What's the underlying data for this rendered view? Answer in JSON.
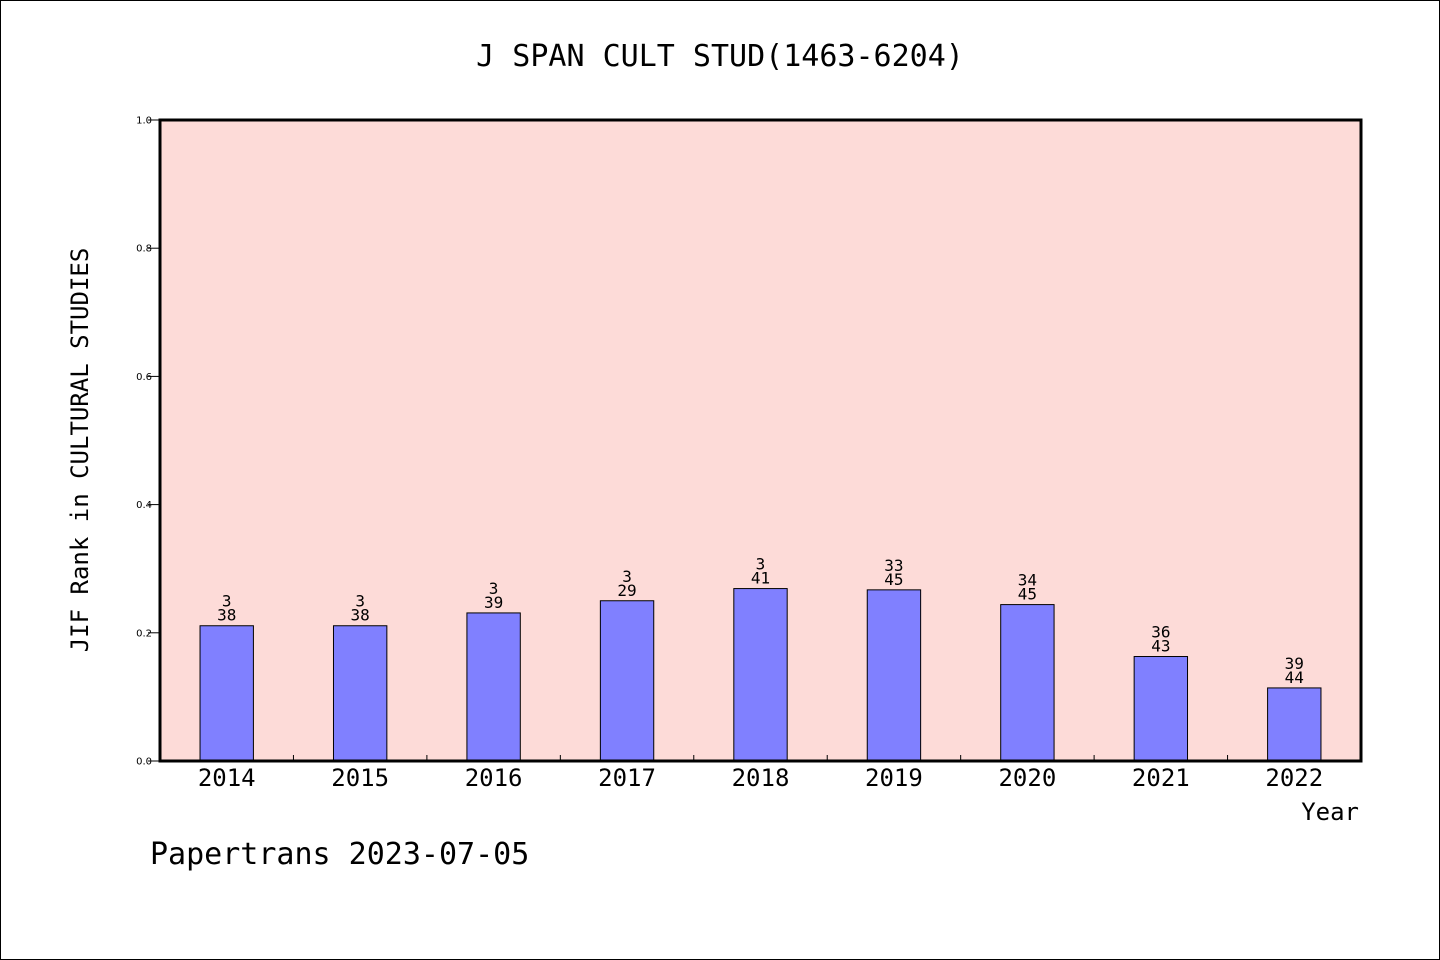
{
  "chart_data": {
    "type": "bar",
    "title": "J SPAN CULT STUD(1463-6204)",
    "xlabel": "Year",
    "ylabel": "JIF Rank in CULTURAL STUDIES",
    "ylim": [
      0.0,
      1.0
    ],
    "yticks": [
      "0.0",
      "0.2",
      "0.4",
      "0.6",
      "0.8",
      "1.0"
    ],
    "grid": false,
    "categories": [
      "2014",
      "2015",
      "2016",
      "2017",
      "2018",
      "2019",
      "2020",
      "2021",
      "2022"
    ],
    "values": [
      0.211,
      0.211,
      0.231,
      0.25,
      0.269,
      0.267,
      0.244,
      0.163,
      0.114
    ],
    "rank": [
      "3",
      "3",
      "3",
      "3",
      "3",
      "33",
      "34",
      "36",
      "39"
    ],
    "total": [
      "38",
      "38",
      "39",
      "29",
      "41",
      "45",
      "45",
      "43",
      "44"
    ],
    "colors": {
      "plot_background": "#fddbd8",
      "bar_fill": "#8080ff",
      "bar_edge": "#000000"
    }
  },
  "footer": "Papertrans 2023-07-05"
}
